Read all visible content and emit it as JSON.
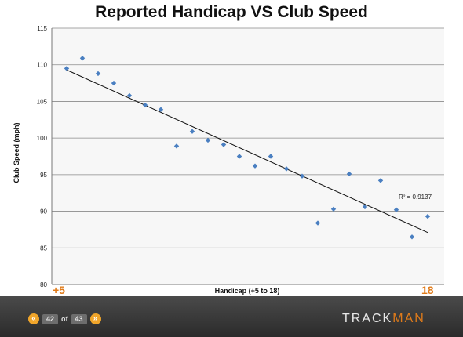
{
  "chart_data": {
    "type": "scatter",
    "title": "Reported Handicap VS Club Speed",
    "xlabel": "Handicap (+5 to 18)",
    "ylabel": "Club Speed (mph)",
    "x_start_label": "+5",
    "x_end_label": "18",
    "ylim": [
      80,
      115
    ],
    "yticks": [
      80,
      85,
      90,
      95,
      100,
      105,
      110,
      115
    ],
    "xlim": [
      -5,
      18
    ],
    "grid": true,
    "legend": "none",
    "marker_color": "#4a7fc1",
    "trendline": {
      "r2_label": "R² = 0.9137",
      "x": [
        -5,
        18
      ],
      "y": [
        109.3,
        87.1
      ]
    },
    "points": [
      {
        "x": -5,
        "y": 109.5
      },
      {
        "x": -4,
        "y": 110.9
      },
      {
        "x": -3,
        "y": 108.8
      },
      {
        "x": -2,
        "y": 107.5
      },
      {
        "x": -1,
        "y": 105.8
      },
      {
        "x": 0,
        "y": 104.5
      },
      {
        "x": 1,
        "y": 103.9
      },
      {
        "x": 2,
        "y": 98.9
      },
      {
        "x": 3,
        "y": 100.9
      },
      {
        "x": 4,
        "y": 99.7
      },
      {
        "x": 5,
        "y": 99.1
      },
      {
        "x": 6,
        "y": 97.5
      },
      {
        "x": 7,
        "y": 96.2
      },
      {
        "x": 8,
        "y": 97.5
      },
      {
        "x": 9,
        "y": 95.8
      },
      {
        "x": 10,
        "y": 94.8
      },
      {
        "x": 11,
        "y": 88.4
      },
      {
        "x": 12,
        "y": 90.3
      },
      {
        "x": 13,
        "y": 95.1
      },
      {
        "x": 14,
        "y": 90.6
      },
      {
        "x": 15,
        "y": 94.2
      },
      {
        "x": 16,
        "y": 90.2
      },
      {
        "x": 17,
        "y": 86.5
      },
      {
        "x": 18,
        "y": 89.3
      }
    ]
  },
  "footer": {
    "current_page": "42",
    "of_label": "of",
    "total_pages": "43",
    "prev_glyph": "«",
    "next_glyph": "»",
    "brand_left": "TRACK",
    "brand_right": "MAN",
    "brand_accent_color": "#e07b1a"
  }
}
